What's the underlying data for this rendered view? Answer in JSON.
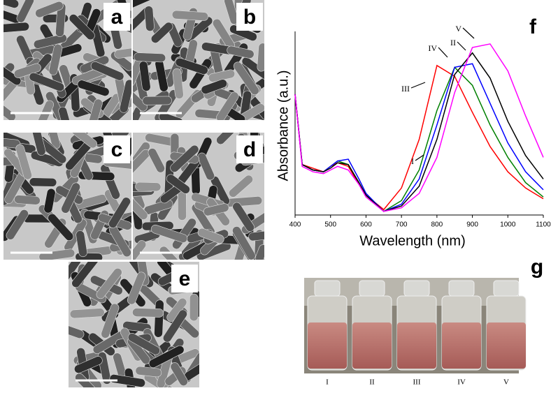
{
  "panels": {
    "a": "a",
    "b": "b",
    "c": "c",
    "d": "d",
    "e": "e",
    "g": "g"
  },
  "chart_data": {
    "type": "line",
    "panel_label": "f",
    "xlabel": "Wavelength (nm)",
    "ylabel": "Absorbance (a.u.)",
    "x": [
      400,
      420,
      450,
      480,
      500,
      520,
      550,
      580,
      600,
      650,
      700,
      750,
      800,
      850,
      900,
      950,
      1000,
      1050,
      1100
    ],
    "xlim": [
      400,
      1100
    ],
    "xticks": [
      400,
      500,
      600,
      700,
      800,
      900,
      1000,
      1100
    ],
    "ylim": [
      0,
      1
    ],
    "series": [
      {
        "color": "#ff0000",
        "values": [
          0.67,
          0.28,
          0.26,
          0.24,
          0.27,
          0.29,
          0.27,
          0.17,
          0.11,
          0.03,
          0.15,
          0.42,
          0.83,
          0.77,
          0.57,
          0.38,
          0.24,
          0.15,
          0.09
        ]
      },
      {
        "color": "#008000",
        "values": [
          0.67,
          0.28,
          0.25,
          0.24,
          0.27,
          0.3,
          0.28,
          0.18,
          0.11,
          0.02,
          0.08,
          0.25,
          0.58,
          0.82,
          0.72,
          0.5,
          0.32,
          0.18,
          0.1
        ]
      },
      {
        "color": "#0000ff",
        "values": [
          0.67,
          0.28,
          0.25,
          0.24,
          0.27,
          0.3,
          0.31,
          0.2,
          0.12,
          0.02,
          0.06,
          0.2,
          0.5,
          0.82,
          0.84,
          0.62,
          0.4,
          0.24,
          0.14
        ]
      },
      {
        "color": "#000000",
        "values": [
          0.67,
          0.28,
          0.25,
          0.24,
          0.26,
          0.29,
          0.28,
          0.18,
          0.11,
          0.02,
          0.05,
          0.16,
          0.42,
          0.78,
          0.9,
          0.76,
          0.52,
          0.33,
          0.2
        ]
      },
      {
        "color": "#ff00ff",
        "values": [
          0.67,
          0.27,
          0.24,
          0.23,
          0.25,
          0.27,
          0.25,
          0.17,
          0.1,
          0.02,
          0.04,
          0.12,
          0.32,
          0.68,
          0.93,
          0.95,
          0.8,
          0.55,
          0.32
        ]
      }
    ],
    "annotations": [
      "I",
      "III",
      "IV",
      "II",
      "V"
    ]
  },
  "vials": [
    "I",
    "II",
    "III",
    "IV",
    "V"
  ]
}
